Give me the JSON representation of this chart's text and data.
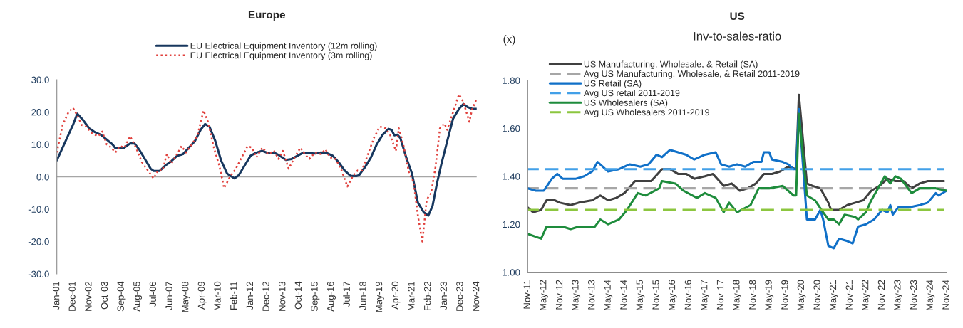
{
  "chart_data": [
    {
      "type": "line",
      "title": "Europe",
      "legend": "top",
      "grid": false,
      "xlim": [
        "2001-01",
        "2024-11"
      ],
      "ylim": [
        -30,
        30
      ],
      "yticks": [
        {
          "value": -30,
          "label": "-30.0"
        },
        {
          "value": -20,
          "label": "-20.0"
        },
        {
          "value": -10,
          "label": "-10.0"
        },
        {
          "value": 0,
          "label": "0.0"
        },
        {
          "value": 10,
          "label": "10.0"
        },
        {
          "value": 20,
          "label": "20.0"
        },
        {
          "value": 30,
          "label": "30.0"
        }
      ],
      "xticks": [
        {
          "value": "2001-01",
          "label": "Jan-01"
        },
        {
          "value": "2001-12",
          "label": "Dec-01"
        },
        {
          "value": "2002-11",
          "label": "Nov-02"
        },
        {
          "value": "2003-10",
          "label": "Oct-03"
        },
        {
          "value": "2004-09",
          "label": "Sep-04"
        },
        {
          "value": "2005-08",
          "label": "Aug-05"
        },
        {
          "value": "2006-07",
          "label": "Jul-06"
        },
        {
          "value": "2007-06",
          "label": "Jun-07"
        },
        {
          "value": "2008-05",
          "label": "May-08"
        },
        {
          "value": "2009-04",
          "label": "Apr-09"
        },
        {
          "value": "2010-03",
          "label": "Mar-10"
        },
        {
          "value": "2011-02",
          "label": "Feb-11"
        },
        {
          "value": "2012-01",
          "label": "Jan-12"
        },
        {
          "value": "2012-12",
          "label": "Dec-12"
        },
        {
          "value": "2013-11",
          "label": "Nov-13"
        },
        {
          "value": "2014-10",
          "label": "Oct-14"
        },
        {
          "value": "2015-09",
          "label": "Sep-15"
        },
        {
          "value": "2016-08",
          "label": "Aug-16"
        },
        {
          "value": "2017-07",
          "label": "Jul-17"
        },
        {
          "value": "2018-06",
          "label": "Jun-18"
        },
        {
          "value": "2019-05",
          "label": "May-19"
        },
        {
          "value": "2020-04",
          "label": "Apr-20"
        },
        {
          "value": "2021-03",
          "label": "Mar-21"
        },
        {
          "value": "2022-02",
          "label": "Feb-22"
        },
        {
          "value": "2023-01",
          "label": "Jan-23"
        },
        {
          "value": "2023-12",
          "label": "Dec-23"
        },
        {
          "value": "2024-11",
          "label": "Nov-24"
        }
      ],
      "ref_lines": [
        {
          "axis": "y",
          "value": 0,
          "color": "#a6a6a6"
        }
      ],
      "series": [
        {
          "name": "EU Electrical Equipment Inventory (12m rolling)",
          "color": "#17375e",
          "line_style": "solid",
          "x": [
            "2001-01",
            "2001-07",
            "2001-12",
            "2002-03",
            "2002-07",
            "2002-11",
            "2003-03",
            "2003-07",
            "2003-11",
            "2004-03",
            "2004-05",
            "2004-09",
            "2004-11",
            "2005-03",
            "2005-06",
            "2005-09",
            "2006-01",
            "2006-05",
            "2006-07",
            "2006-11",
            "2007-03",
            "2007-07",
            "2007-11",
            "2008-03",
            "2008-07",
            "2008-11",
            "2009-03",
            "2009-06",
            "2009-09",
            "2010-01",
            "2010-05",
            "2010-09",
            "2011-02",
            "2011-05",
            "2011-09",
            "2012-01",
            "2012-05",
            "2012-09",
            "2013-01",
            "2013-05",
            "2013-09",
            "2014-01",
            "2014-05",
            "2014-09",
            "2015-01",
            "2015-05",
            "2015-09",
            "2016-01",
            "2016-05",
            "2016-09",
            "2017-01",
            "2017-05",
            "2017-09",
            "2018-01",
            "2018-03",
            "2018-07",
            "2018-11",
            "2019-03",
            "2019-07",
            "2019-11",
            "2020-01",
            "2020-03",
            "2020-05",
            "2020-07",
            "2020-11",
            "2021-03",
            "2021-07",
            "2021-11",
            "2022-02",
            "2022-05",
            "2022-08",
            "2022-11",
            "2023-03",
            "2023-07",
            "2023-11",
            "2024-02",
            "2024-05",
            "2024-08",
            "2024-11"
          ],
          "values": [
            5.1,
            11,
            16,
            19.5,
            17.5,
            15,
            13.8,
            13,
            11.5,
            10,
            8.8,
            8.8,
            9,
            10.3,
            10.3,
            8.5,
            5.5,
            2.5,
            1.8,
            1.8,
            3.5,
            4.8,
            6.5,
            7,
            9,
            11,
            14.5,
            16.3,
            15.5,
            11,
            5,
            1,
            -0.5,
            0.5,
            3.5,
            6.5,
            7.5,
            8,
            7.3,
            7.5,
            6.5,
            5.2,
            5.5,
            6.5,
            7.5,
            7.3,
            7.2,
            7.5,
            7.3,
            6.5,
            4.5,
            2,
            0.3,
            0.2,
            0.5,
            3,
            6,
            10,
            13,
            14.8,
            14.5,
            12.8,
            13,
            12,
            6,
            1,
            -8,
            -11,
            -12,
            -9,
            -2,
            4,
            11,
            18,
            21,
            22.5,
            21.5,
            21,
            21
          ]
        },
        {
          "name": "EU Electrical Equipment Inventory (3m rolling)",
          "color": "#e0403c",
          "line_style": "dotted",
          "x": [
            "2001-01",
            "2001-05",
            "2001-09",
            "2001-12",
            "2002-03",
            "2002-06",
            "2002-09",
            "2003-01",
            "2003-05",
            "2003-08",
            "2003-11",
            "2004-02",
            "2004-05",
            "2004-08",
            "2004-11",
            "2005-03",
            "2005-07",
            "2005-11",
            "2006-03",
            "2006-07",
            "2006-10",
            "2007-01",
            "2007-04",
            "2007-07",
            "2007-11",
            "2008-02",
            "2008-05",
            "2008-09",
            "2009-01",
            "2009-05",
            "2009-08",
            "2009-12",
            "2010-04",
            "2010-07",
            "2010-11",
            "2011-03",
            "2011-07",
            "2011-11",
            "2012-02",
            "2012-05",
            "2012-09",
            "2013-01",
            "2013-05",
            "2013-08",
            "2013-11",
            "2014-03",
            "2014-07",
            "2014-11",
            "2015-02",
            "2015-05",
            "2015-09",
            "2016-01",
            "2016-04",
            "2016-07",
            "2016-11",
            "2017-03",
            "2017-07",
            "2017-11",
            "2018-02",
            "2018-05",
            "2018-09",
            "2019-01",
            "2019-05",
            "2019-09",
            "2019-12",
            "2020-04",
            "2020-06",
            "2020-09",
            "2021-01",
            "2021-04",
            "2021-07",
            "2021-10",
            "2022-01",
            "2022-04",
            "2022-07",
            "2022-10",
            "2023-01",
            "2023-03",
            "2023-07",
            "2023-11",
            "2024-02",
            "2024-06",
            "2024-08",
            "2024-11"
          ],
          "values": [
            7.5,
            16,
            20,
            21.3,
            19,
            16,
            15.5,
            13.5,
            12.5,
            14,
            10,
            9,
            7.5,
            9.5,
            9,
            12.5,
            9,
            4.5,
            2,
            -0.5,
            2,
            2,
            7,
            4,
            7,
            9.5,
            7.5,
            10,
            13,
            20.5,
            17,
            9,
            3,
            -3.5,
            0,
            2.5,
            6,
            9.5,
            9,
            6,
            9,
            7,
            8,
            5.5,
            8,
            2.5,
            6,
            9,
            7,
            5.5,
            7.5,
            7,
            8.5,
            6,
            5.5,
            2,
            -3,
            0.5,
            2,
            2,
            7,
            12,
            15.5,
            15,
            13,
            8,
            15,
            10,
            1,
            -1.5,
            -12,
            -20,
            -7,
            -5,
            3,
            15,
            16.5,
            14.5,
            20,
            25.5,
            23,
            17,
            21,
            24
          ]
        }
      ]
    },
    {
      "type": "line",
      "title": "US",
      "subtitle": "Inv-to-sales-ratio",
      "ylabel": "(x)",
      "legend": "top left",
      "grid": false,
      "xlim": [
        "2011-11",
        "2024-11"
      ],
      "ylim": [
        1.0,
        1.8
      ],
      "yticks": [
        {
          "value": 1.0,
          "label": "1.00"
        },
        {
          "value": 1.2,
          "label": "1.20"
        },
        {
          "value": 1.4,
          "label": "1.40"
        },
        {
          "value": 1.6,
          "label": "1.60"
        },
        {
          "value": 1.8,
          "label": "1.80"
        }
      ],
      "xticks": [
        {
          "value": "2011-11",
          "label": "Nov-11"
        },
        {
          "value": "2012-05",
          "label": "May-12"
        },
        {
          "value": "2012-11",
          "label": "Nov-12"
        },
        {
          "value": "2013-05",
          "label": "May-13"
        },
        {
          "value": "2013-11",
          "label": "Nov-13"
        },
        {
          "value": "2014-05",
          "label": "May-14"
        },
        {
          "value": "2014-11",
          "label": "Nov-14"
        },
        {
          "value": "2015-05",
          "label": "May-15"
        },
        {
          "value": "2015-11",
          "label": "Nov-15"
        },
        {
          "value": "2016-05",
          "label": "May-16"
        },
        {
          "value": "2016-11",
          "label": "Nov-16"
        },
        {
          "value": "2017-05",
          "label": "May-17"
        },
        {
          "value": "2017-11",
          "label": "Nov-17"
        },
        {
          "value": "2018-05",
          "label": "May-18"
        },
        {
          "value": "2018-11",
          "label": "Nov-18"
        },
        {
          "value": "2019-05",
          "label": "May-19"
        },
        {
          "value": "2019-11",
          "label": "Nov-19"
        },
        {
          "value": "2020-05",
          "label": "May-20"
        },
        {
          "value": "2020-11",
          "label": "Nov-20"
        },
        {
          "value": "2021-05",
          "label": "May-21"
        },
        {
          "value": "2021-11",
          "label": "Nov-21"
        },
        {
          "value": "2022-05",
          "label": "May-22"
        },
        {
          "value": "2022-11",
          "label": "Nov-22"
        },
        {
          "value": "2023-05",
          "label": "May-23"
        },
        {
          "value": "2023-11",
          "label": "Nov-23"
        },
        {
          "value": "2024-05",
          "label": "May-24"
        },
        {
          "value": "2024-11",
          "label": "Nov-24"
        }
      ],
      "series": [
        {
          "name": "US Manufacturing, Wholesale, & Retail (SA)",
          "color": "#404040",
          "line_style": "solid",
          "x": [
            "2011-11",
            "2012-01",
            "2012-04",
            "2012-06",
            "2012-09",
            "2012-11",
            "2013-03",
            "2013-06",
            "2013-11",
            "2014-02",
            "2014-05",
            "2014-08",
            "2014-11",
            "2015-03",
            "2015-06",
            "2015-09",
            "2016-01",
            "2016-04",
            "2016-07",
            "2016-10",
            "2017-01",
            "2017-05",
            "2017-08",
            "2017-12",
            "2018-03",
            "2018-06",
            "2018-09",
            "2018-12",
            "2019-03",
            "2019-06",
            "2019-09",
            "2019-12",
            "2020-03",
            "2020-04",
            "2020-07",
            "2020-09",
            "2020-12",
            "2021-03",
            "2021-04",
            "2021-07",
            "2021-10",
            "2022-01",
            "2022-04",
            "2022-07",
            "2022-10",
            "2023-01",
            "2023-04",
            "2023-07",
            "2023-10",
            "2024-01",
            "2024-04",
            "2024-07",
            "2024-10"
          ],
          "values": [
            1.27,
            1.25,
            1.26,
            1.3,
            1.3,
            1.29,
            1.28,
            1.29,
            1.3,
            1.32,
            1.3,
            1.31,
            1.33,
            1.38,
            1.38,
            1.38,
            1.43,
            1.43,
            1.41,
            1.41,
            1.39,
            1.4,
            1.41,
            1.36,
            1.37,
            1.34,
            1.35,
            1.37,
            1.41,
            1.41,
            1.42,
            1.44,
            1.43,
            1.74,
            1.37,
            1.36,
            1.35,
            1.29,
            1.26,
            1.26,
            1.28,
            1.29,
            1.3,
            1.34,
            1.36,
            1.39,
            1.38,
            1.38,
            1.35,
            1.37,
            1.38,
            1.38,
            1.38
          ]
        },
        {
          "name": "Avg US Manufacturing, Wholesale, & Retail 2011-2019",
          "color": "#a6a6a6",
          "line_style": "dashed",
          "x": [
            "2011-11",
            "2024-10"
          ],
          "values": [
            1.35,
            1.35
          ]
        },
        {
          "name": "US Retail (SA)",
          "color": "#1070c8",
          "line_style": "solid",
          "x": [
            "2011-11",
            "2012-02",
            "2012-05",
            "2012-08",
            "2012-10",
            "2012-12",
            "2013-05",
            "2013-08",
            "2013-11",
            "2014-01",
            "2014-05",
            "2014-09",
            "2015-01",
            "2015-05",
            "2015-08",
            "2015-11",
            "2016-01",
            "2016-04",
            "2016-07",
            "2016-10",
            "2017-01",
            "2017-05",
            "2017-09",
            "2017-11",
            "2018-02",
            "2018-05",
            "2018-08",
            "2018-11",
            "2019-02",
            "2019-03",
            "2019-05",
            "2019-06",
            "2019-10",
            "2019-12",
            "2020-02",
            "2020-03",
            "2020-04",
            "2020-07",
            "2020-10",
            "2020-12",
            "2021-01",
            "2021-03",
            "2021-05",
            "2021-07",
            "2021-10",
            "2021-12",
            "2022-02",
            "2022-05",
            "2022-08",
            "2022-11",
            "2023-01",
            "2023-02",
            "2023-03",
            "2023-05",
            "2023-09",
            "2024-01",
            "2024-04",
            "2024-07",
            "2024-08",
            "2024-11"
          ],
          "values": [
            1.35,
            1.34,
            1.34,
            1.39,
            1.41,
            1.39,
            1.39,
            1.4,
            1.42,
            1.46,
            1.42,
            1.43,
            1.45,
            1.44,
            1.45,
            1.49,
            1.48,
            1.51,
            1.5,
            1.49,
            1.47,
            1.49,
            1.5,
            1.45,
            1.44,
            1.45,
            1.44,
            1.46,
            1.46,
            1.5,
            1.5,
            1.47,
            1.46,
            1.45,
            1.43,
            1.43,
            1.68,
            1.22,
            1.22,
            1.26,
            1.22,
            1.11,
            1.1,
            1.14,
            1.13,
            1.12,
            1.19,
            1.2,
            1.22,
            1.26,
            1.25,
            1.28,
            1.24,
            1.27,
            1.27,
            1.28,
            1.29,
            1.33,
            1.32,
            1.34
          ]
        },
        {
          "name": "Avg US retail 2011-2019",
          "color": "#42a0e8",
          "line_style": "dashed",
          "x": [
            "2011-11",
            "2024-10"
          ],
          "values": [
            1.43,
            1.43
          ]
        },
        {
          "name": "US Wholesalers (SA)",
          "color": "#1e8c3c",
          "line_style": "solid",
          "x": [
            "2011-11",
            "2012-04",
            "2012-06",
            "2012-12",
            "2013-03",
            "2013-06",
            "2013-12",
            "2014-02",
            "2014-05",
            "2014-09",
            "2014-12",
            "2015-04",
            "2015-07",
            "2015-12",
            "2016-01",
            "2016-06",
            "2016-09",
            "2017-02",
            "2017-05",
            "2017-09",
            "2017-12",
            "2018-02",
            "2018-05",
            "2018-10",
            "2019-01",
            "2019-05",
            "2019-10",
            "2020-02",
            "2020-03",
            "2020-04",
            "2020-07",
            "2020-10",
            "2021-01",
            "2021-03",
            "2021-05",
            "2021-07",
            "2021-09",
            "2022-01",
            "2022-02",
            "2022-05",
            "2022-07",
            "2022-10",
            "2022-12",
            "2023-02",
            "2023-04",
            "2023-06",
            "2023-10",
            "2024-01",
            "2024-04",
            "2024-07",
            "2024-11"
          ],
          "values": [
            1.16,
            1.14,
            1.19,
            1.19,
            1.18,
            1.19,
            1.19,
            1.22,
            1.2,
            1.22,
            1.26,
            1.33,
            1.32,
            1.35,
            1.38,
            1.37,
            1.34,
            1.31,
            1.33,
            1.31,
            1.25,
            1.29,
            1.25,
            1.28,
            1.35,
            1.35,
            1.36,
            1.32,
            1.32,
            1.66,
            1.32,
            1.3,
            1.25,
            1.22,
            1.22,
            1.2,
            1.24,
            1.23,
            1.22,
            1.25,
            1.3,
            1.36,
            1.4,
            1.37,
            1.4,
            1.39,
            1.33,
            1.35,
            1.35,
            1.35,
            1.34
          ]
        },
        {
          "name": "Avg US Wholesalers 2011-2019",
          "color": "#8cc63f",
          "line_style": "dashed",
          "x": [
            "2011-11",
            "2024-10"
          ],
          "values": [
            1.26,
            1.26
          ]
        }
      ]
    }
  ]
}
